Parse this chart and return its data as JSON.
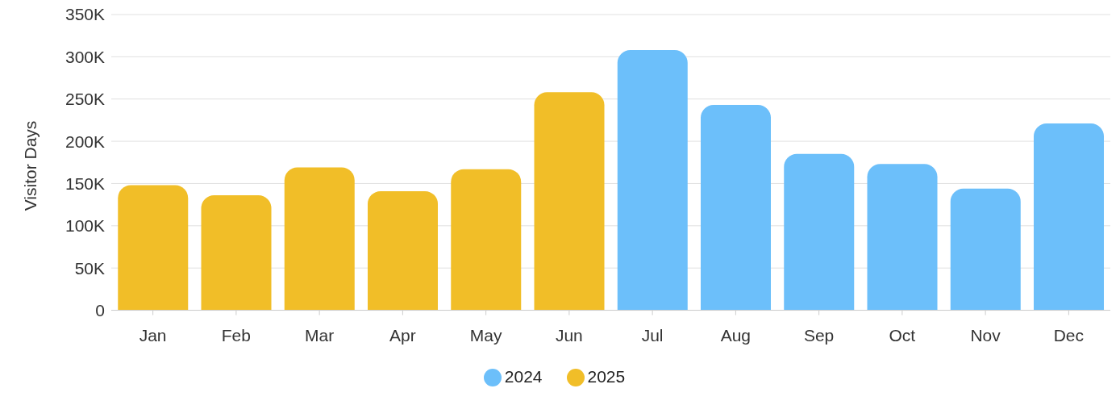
{
  "chart_data": {
    "type": "bar",
    "ylabel": "Visitor Days",
    "categories": [
      "Jan",
      "Feb",
      "Mar",
      "Apr",
      "May",
      "Jun",
      "Jul",
      "Aug",
      "Sep",
      "Oct",
      "Nov",
      "Dec"
    ],
    "series": [
      {
        "name": "2024",
        "color": "#6cbffa",
        "values": [
          null,
          null,
          null,
          null,
          null,
          null,
          308000,
          243000,
          185000,
          173000,
          144000,
          221000
        ]
      },
      {
        "name": "2025",
        "color": "#f1be28",
        "values": [
          148000,
          136000,
          169000,
          141000,
          167000,
          258000,
          null,
          null,
          null,
          null,
          null,
          null
        ]
      }
    ],
    "stacked": true,
    "ylim": [
      0,
      350000
    ],
    "yticks": [
      {
        "value": 0,
        "label": "0"
      },
      {
        "value": 50000,
        "label": "50K"
      },
      {
        "value": 100000,
        "label": "100K"
      },
      {
        "value": 150000,
        "label": "150K"
      },
      {
        "value": 200000,
        "label": "200K"
      },
      {
        "value": 250000,
        "label": "250K"
      },
      {
        "value": 300000,
        "label": "300K"
      },
      {
        "value": 350000,
        "label": "350K"
      }
    ],
    "grid": "y",
    "legend": "bottom"
  }
}
